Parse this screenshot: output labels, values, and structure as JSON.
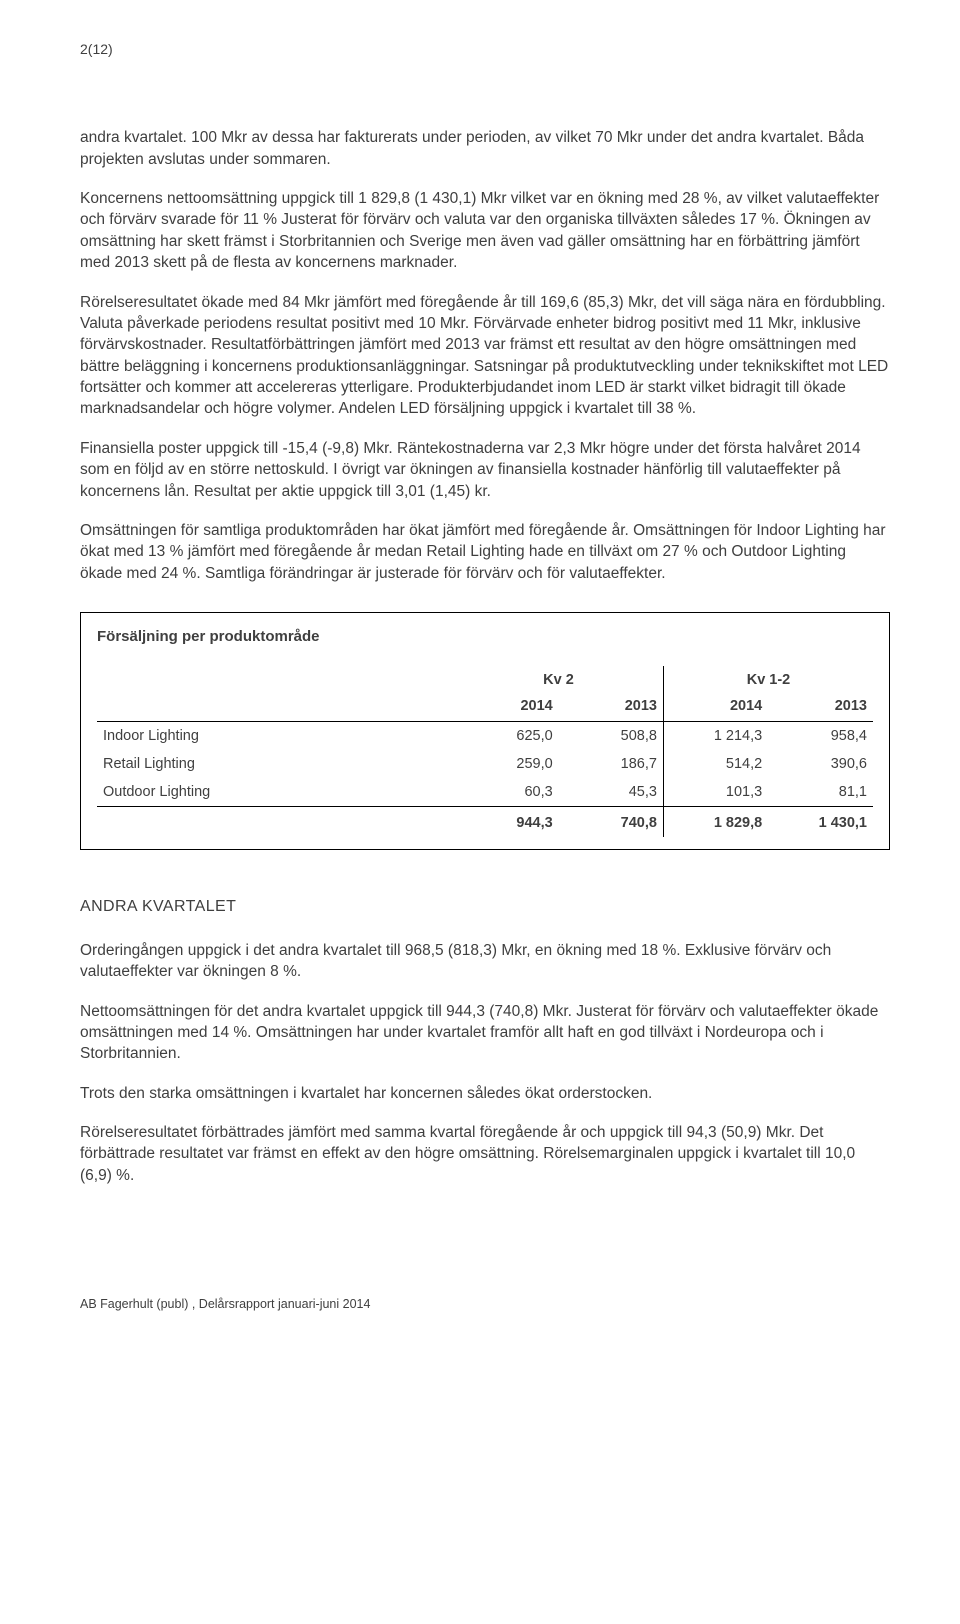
{
  "page_marker": "2(12)",
  "paragraphs": {
    "p1": "andra kvartalet. 100 Mkr av dessa har fakturerats under perioden, av vilket 70 Mkr under det andra kvartalet. Båda projekten avslutas under sommaren.",
    "p2": "Koncernens nettoomsättning uppgick till 1 829,8 (1 430,1) Mkr vilket var en ökning med 28 %, av vilket valutaeffekter och förvärv svarade för 11 % Justerat för förvärv och valuta var den organiska tillväxten således 17 %. Ökningen av omsättning har skett främst i Storbritannien och Sverige men även vad gäller omsättning har en förbättring jämfört med 2013 skett på de flesta av koncernens marknader.",
    "p3": "Rörelseresultatet ökade med 84 Mkr jämfört med föregående år till 169,6 (85,3) Mkr, det vill säga nära en fördubbling. Valuta påverkade periodens resultat positivt med 10 Mkr. Förvärvade enheter bidrog positivt med 11 Mkr, inklusive förvärvskostnader. Resultatförbättringen jämfört med 2013 var främst ett resultat av den högre omsättningen med bättre beläggning i koncernens produktionsanläggningar. Satsningar på produktutveckling under teknikskiftet mot LED fortsätter och kommer att accelereras ytterligare. Produkterbjudandet inom LED är starkt vilket bidragit till ökade marknadsandelar och högre volymer. Andelen LED försäljning uppgick i kvartalet till 38 %.",
    "p4": "Finansiella poster uppgick till -15,4 (-9,8) Mkr. Räntekostnaderna var 2,3 Mkr högre under det första halvåret 2014 som en följd av en större nettoskuld. I övrigt var ökningen av finansiella kostnader hänförlig till valutaeffekter på koncernens lån. Resultat per aktie uppgick till 3,01 (1,45) kr.",
    "p5": "Omsättningen för samtliga produktområden har ökat jämfört med föregående år. Omsättningen för Indoor Lighting  har ökat med 13 % jämfört med föregående år medan Retail Lighting hade en tillväxt om 27 % och Outdoor Lighting ökade med 24 %. Samtliga förändringar är justerade för förvärv och för valutaeffekter."
  },
  "table": {
    "title": "Försäljning per produktområde",
    "group_headers": [
      "Kv 2",
      "Kv 1-2"
    ],
    "year_headers": [
      "2014",
      "2013",
      "2014",
      "2013"
    ],
    "rows": [
      {
        "label": "Indoor Lighting",
        "v": [
          "625,0",
          "508,8",
          "1 214,3",
          "958,4"
        ]
      },
      {
        "label": "Retail Lighting",
        "v": [
          "259,0",
          "186,7",
          "514,2",
          "390,6"
        ]
      },
      {
        "label": "Outdoor Lighting",
        "v": [
          "60,3",
          "45,3",
          "101,3",
          "81,1"
        ]
      }
    ],
    "total": [
      "944,3",
      "740,8",
      "1 829,8",
      "1 430,1"
    ],
    "colors": {
      "border": "#000000",
      "text": "#3f3f3f",
      "background": "#ffffff"
    }
  },
  "section_heading": "ANDRA KVARTALET",
  "paragraphs2": {
    "q1": "Orderingången uppgick i det andra kvartalet till 968,5 (818,3) Mkr, en ökning med 18 %. Exklusive förvärv och valutaeffekter var ökningen 8 %.",
    "q2": "Nettoomsättningen för det andra kvartalet uppgick till 944,3 (740,8) Mkr. Justerat för förvärv och valutaeffekter ökade omsättningen med 14 %. Omsättningen har under kvartalet framför allt haft en god tillväxt i Nordeuropa och i Storbritannien.",
    "q3": "Trots den starka omsättningen i kvartalet har koncernen således ökat orderstocken.",
    "q4": "Rörelseresultatet förbättrades jämfört med samma kvartal föregående år och uppgick till 94,3 (50,9) Mkr. Det förbättrade resultatet var främst en effekt av den högre omsättning. Rörelsemarginalen uppgick i kvartalet till 10,0 (6,9) %."
  },
  "footer": "AB Fagerhult (publ) , Delårsrapport januari-juni 2014"
}
